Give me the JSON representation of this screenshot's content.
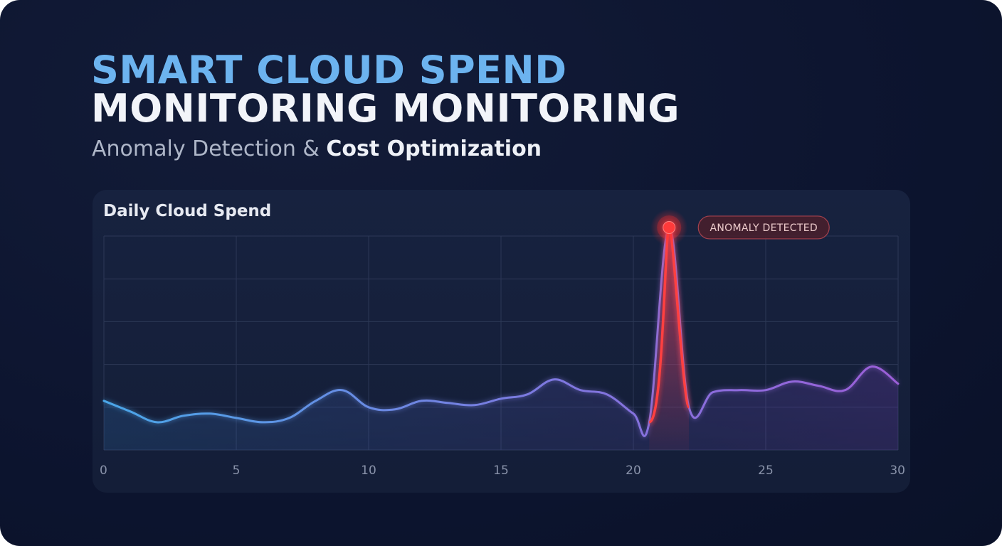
{
  "header": {
    "title_line1": "SMART CLOUD SPEND",
    "title_line2": "MONITORING  MONITORING",
    "subtitle_regular": "Anomaly Detection & ",
    "subtitle_strong": "Cost Optimization"
  },
  "colors": {
    "title_accent": "#6cb3ef",
    "line_start": "#4aa6e8",
    "line_end": "#9b5fd8",
    "anomaly": "#ff3b3b"
  },
  "chart_data": {
    "type": "line",
    "title": "Daily Cloud Spend",
    "xlabel": "",
    "ylabel": "",
    "xlim": [
      0,
      30
    ],
    "ylim": [
      0,
      100
    ],
    "xticks": [
      0,
      5,
      10,
      15,
      20,
      25,
      30
    ],
    "grid": true,
    "x": [
      0,
      1,
      2,
      3,
      4,
      5,
      6,
      7,
      8,
      9,
      10,
      11,
      12,
      13,
      14,
      15,
      16,
      17,
      18,
      19,
      20,
      20.6,
      21.35,
      22.1,
      23,
      24,
      25,
      26,
      27,
      28,
      29,
      30
    ],
    "y": [
      23,
      18,
      13,
      16,
      17,
      15,
      13,
      15,
      23,
      28,
      20,
      19,
      23,
      22,
      21,
      24,
      26,
      33,
      28,
      26,
      17,
      13,
      104,
      20,
      27,
      28,
      28,
      32,
      30,
      28,
      39,
      31
    ],
    "annotations": [
      {
        "x": 21.35,
        "y": 104,
        "label": "ANOMALY DETECTED"
      }
    ]
  }
}
